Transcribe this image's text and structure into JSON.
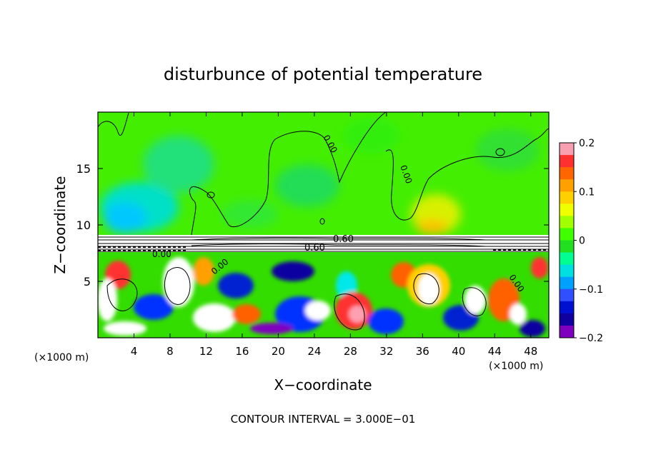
{
  "chart_data": {
    "type": "heatmap",
    "title": "disturbunce of potential temperature",
    "xlabel": "X−coordinate",
    "ylabel": "Z−coordinate",
    "x_unit": "(×1000 m)",
    "x_ticks": [
      4,
      8,
      12,
      16,
      20,
      24,
      28,
      32,
      36,
      40,
      44,
      48
    ],
    "y_ticks": [
      5,
      10,
      15
    ],
    "xlim": [
      0,
      50
    ],
    "ylim": [
      0,
      20
    ],
    "colorbar": {
      "min": -0.2,
      "max": 0.2,
      "ticks": [
        "0.2",
        "0.1",
        "0",
        "−0.1",
        "−0.2"
      ],
      "tick_values": [
        0.2,
        0.1,
        0,
        -0.1,
        -0.2
      ],
      "colors": [
        "#f8a0b0",
        "#ff3030",
        "#ff6600",
        "#ffa000",
        "#ffd000",
        "#f0ff00",
        "#a0ff00",
        "#40ff00",
        "#20e020",
        "#00ff90",
        "#00e0e0",
        "#00a0ff",
        "#3050ff",
        "#0010d0",
        "#1000a0",
        "#8000c0"
      ]
    },
    "contour_labels": [
      "0.60",
      "0.60",
      "0.00",
      "0.00",
      "0.00",
      "0.00",
      "0.00"
    ],
    "footer": "CONTOUR INTERVAL = 3.000E−01"
  }
}
